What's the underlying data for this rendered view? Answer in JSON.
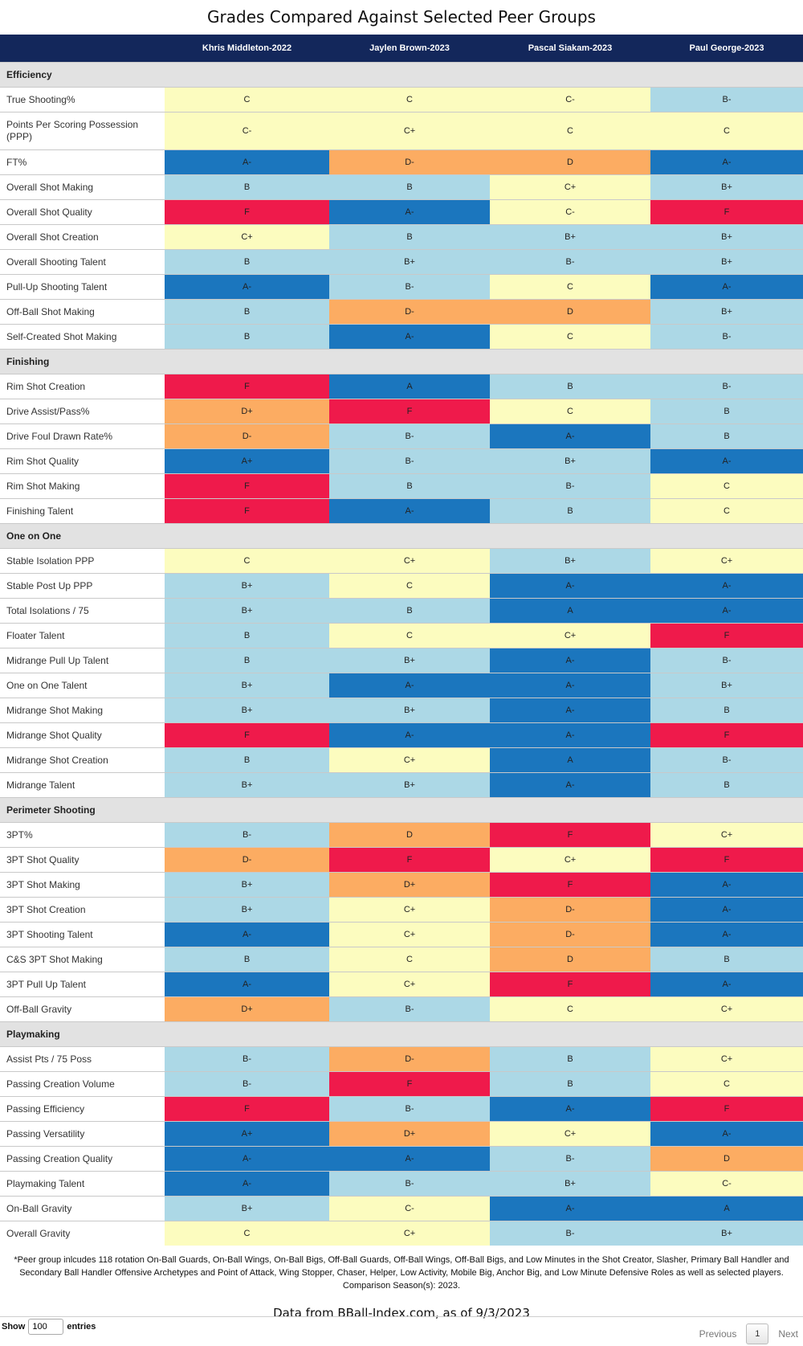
{
  "title": "Grades Compared Against Selected Peer Groups",
  "columns": [
    "",
    "Khris Middleton-2022",
    "Jaylen Brown-2023",
    "Pascal Siakam-2023",
    "Paul George-2023"
  ],
  "grade_colors": {
    "F": "#ef1a4b",
    "D": "#fcac62",
    "C": "#fcfcbf",
    "B": "#acd8e6",
    "A": "#1b76be"
  },
  "sections": [
    {
      "name": "Efficiency",
      "rows": [
        {
          "label": "True Shooting%",
          "grades": [
            "C",
            "C",
            "C-",
            "B-"
          ]
        },
        {
          "label": "Points Per Scoring Possession (PPP)",
          "grades": [
            "C-",
            "C+",
            "C",
            "C"
          ]
        },
        {
          "label": "FT%",
          "grades": [
            "A-",
            "D-",
            "D",
            "A-"
          ]
        },
        {
          "label": "Overall Shot Making",
          "grades": [
            "B",
            "B",
            "C+",
            "B+"
          ]
        },
        {
          "label": "Overall Shot Quality",
          "grades": [
            "F",
            "A-",
            "C-",
            "F"
          ]
        },
        {
          "label": "Overall Shot Creation",
          "grades": [
            "C+",
            "B",
            "B+",
            "B+"
          ]
        },
        {
          "label": "Overall Shooting Talent",
          "grades": [
            "B",
            "B+",
            "B-",
            "B+"
          ]
        },
        {
          "label": "Pull-Up Shooting Talent",
          "grades": [
            "A-",
            "B-",
            "C",
            "A-"
          ]
        },
        {
          "label": "Off-Ball Shot Making",
          "grades": [
            "B",
            "D-",
            "D",
            "B+"
          ]
        },
        {
          "label": "Self-Created Shot Making",
          "grades": [
            "B",
            "A-",
            "C",
            "B-"
          ]
        }
      ]
    },
    {
      "name": "Finishing",
      "rows": [
        {
          "label": "Rim Shot Creation",
          "grades": [
            "F",
            "A",
            "B",
            "B-"
          ]
        },
        {
          "label": "Drive Assist/Pass%",
          "grades": [
            "D+",
            "F",
            "C",
            "B"
          ]
        },
        {
          "label": "Drive Foul Drawn Rate%",
          "grades": [
            "D-",
            "B-",
            "A-",
            "B"
          ]
        },
        {
          "label": "Rim Shot Quality",
          "grades": [
            "A+",
            "B-",
            "B+",
            "A-"
          ]
        },
        {
          "label": "Rim Shot Making",
          "grades": [
            "F",
            "B",
            "B-",
            "C"
          ]
        },
        {
          "label": "Finishing Talent",
          "grades": [
            "F",
            "A-",
            "B",
            "C"
          ]
        }
      ]
    },
    {
      "name": "One on One",
      "rows": [
        {
          "label": "Stable Isolation PPP",
          "grades": [
            "C",
            "C+",
            "B+",
            "C+"
          ]
        },
        {
          "label": "Stable Post Up PPP",
          "grades": [
            "B+",
            "C",
            "A-",
            "A-"
          ]
        },
        {
          "label": "Total Isolations / 75",
          "grades": [
            "B+",
            "B",
            "A",
            "A-"
          ]
        },
        {
          "label": "Floater Talent",
          "grades": [
            "B",
            "C",
            "C+",
            "F"
          ]
        },
        {
          "label": "Midrange Pull Up Talent",
          "grades": [
            "B",
            "B+",
            "A-",
            "B-"
          ]
        },
        {
          "label": "One on One Talent",
          "grades": [
            "B+",
            "A-",
            "A-",
            "B+"
          ]
        },
        {
          "label": "Midrange Shot Making",
          "grades": [
            "B+",
            "B+",
            "A-",
            "B"
          ]
        },
        {
          "label": "Midrange Shot Quality",
          "grades": [
            "F",
            "A-",
            "A-",
            "F"
          ]
        },
        {
          "label": "Midrange Shot Creation",
          "grades": [
            "B",
            "C+",
            "A",
            "B-"
          ]
        },
        {
          "label": "Midrange Talent",
          "grades": [
            "B+",
            "B+",
            "A-",
            "B"
          ]
        }
      ]
    },
    {
      "name": "Perimeter Shooting",
      "rows": [
        {
          "label": "3PT%",
          "grades": [
            "B-",
            "D",
            "F",
            "C+"
          ]
        },
        {
          "label": "3PT Shot Quality",
          "grades": [
            "D-",
            "F",
            "C+",
            "F"
          ]
        },
        {
          "label": "3PT Shot Making",
          "grades": [
            "B+",
            "D+",
            "F",
            "A-"
          ]
        },
        {
          "label": "3PT Shot Creation",
          "grades": [
            "B+",
            "C+",
            "D-",
            "A-"
          ]
        },
        {
          "label": "3PT Shooting Talent",
          "grades": [
            "A-",
            "C+",
            "D-",
            "A-"
          ]
        },
        {
          "label": "C&S 3PT Shot Making",
          "grades": [
            "B",
            "C",
            "D",
            "B"
          ]
        },
        {
          "label": "3PT Pull Up Talent",
          "grades": [
            "A-",
            "C+",
            "F",
            "A-"
          ]
        },
        {
          "label": "Off-Ball Gravity",
          "grades": [
            "D+",
            "B-",
            "C",
            "C+"
          ]
        }
      ]
    },
    {
      "name": "Playmaking",
      "rows": [
        {
          "label": "Assist Pts / 75 Poss",
          "grades": [
            "B-",
            "D-",
            "B",
            "C+"
          ]
        },
        {
          "label": "Passing Creation Volume",
          "grades": [
            "B-",
            "F",
            "B",
            "C"
          ]
        },
        {
          "label": "Passing Efficiency",
          "grades": [
            "F",
            "B-",
            "A-",
            "F"
          ]
        },
        {
          "label": "Passing Versatility",
          "grades": [
            "A+",
            "D+",
            "C+",
            "A-"
          ]
        },
        {
          "label": "Passing Creation Quality",
          "grades": [
            "A-",
            "A-",
            "B-",
            "D"
          ]
        },
        {
          "label": "Playmaking Talent",
          "grades": [
            "A-",
            "B-",
            "B+",
            "C-"
          ]
        },
        {
          "label": "On-Ball Gravity",
          "grades": [
            "B+",
            "C-",
            "A-",
            "A"
          ]
        },
        {
          "label": "Overall Gravity",
          "grades": [
            "C",
            "C+",
            "B-",
            "B+"
          ]
        }
      ]
    }
  ],
  "footnote": "*Peer group inlcudes 118 rotation On-Ball Guards, On-Ball Wings, On-Ball Bigs, Off-Ball Guards, Off-Ball Wings, Off-Ball Bigs, and Low Minutes in the Shot Creator, Slasher, Primary Ball Handler and Secondary Ball Handler Offensive Archetypes and Point of Attack, Wing Stopper, Chaser, Helper, Low Activity, Mobile Big, Anchor Big, and Low Minute Defensive Roles as well as selected players. Comparison Season(s): 2023.",
  "source": "Data from BBall-Index.com, as of 9/3/2023",
  "length_control": {
    "show_label": "Show",
    "value": "100",
    "entries_label": "entries"
  },
  "pagination": {
    "previous": "Previous",
    "current_page": "1",
    "next": "Next"
  }
}
